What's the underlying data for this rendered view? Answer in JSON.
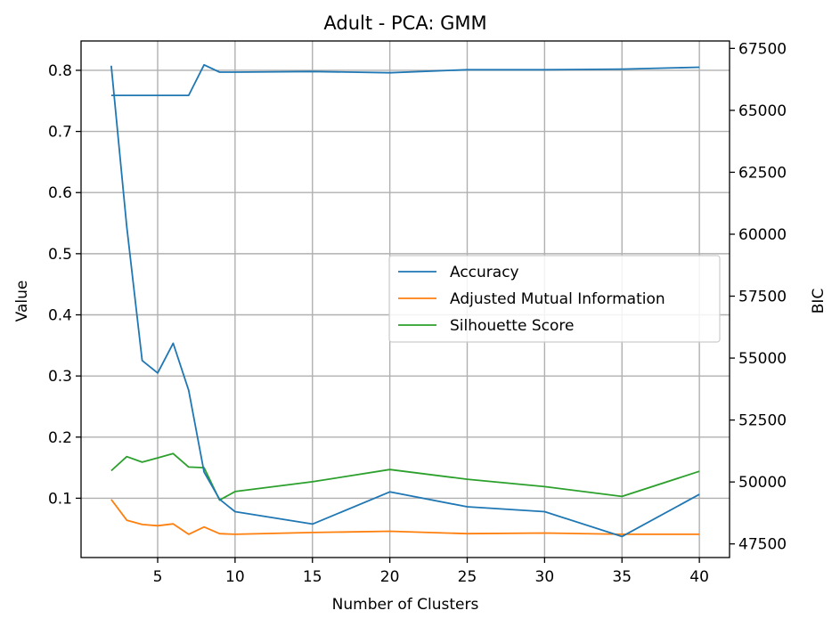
{
  "chart_data": {
    "type": "line",
    "title": "Adult - PCA: GMM",
    "xlabel": "Number of Clusters",
    "ylabel": "Value",
    "y2label": "BIC",
    "xlim": [
      0.05,
      41.95
    ],
    "ylim": [
      0.003,
      0.848
    ],
    "y2lim": [
      46950,
      67800
    ],
    "xticks": [
      5,
      10,
      15,
      20,
      25,
      30,
      35,
      40
    ],
    "yticks": [
      0.1,
      0.2,
      0.3,
      0.4,
      0.5,
      0.6,
      0.7,
      0.8
    ],
    "y2ticks": [
      47500,
      50000,
      52500,
      55000,
      57500,
      60000,
      62500,
      65000,
      67500
    ],
    "grid": true,
    "legend_position": "center-right",
    "series": [
      {
        "name": "Accuracy",
        "color": "#1f77b4",
        "axis": "left",
        "x": [
          2,
          3,
          4,
          5,
          6,
          7,
          8,
          9,
          10,
          15,
          20,
          25,
          30,
          35,
          40
        ],
        "y": [
          0.759,
          0.759,
          0.759,
          0.759,
          0.759,
          0.759,
          0.809,
          0.797,
          0.797,
          0.798,
          0.796,
          0.801,
          0.801,
          0.802,
          0.805
        ]
      },
      {
        "name": "Adjusted Mutual Information",
        "color": "#ff7f0e",
        "axis": "left",
        "x": [
          2,
          3,
          4,
          5,
          6,
          7,
          8,
          9,
          10,
          15,
          20,
          25,
          30,
          35,
          40
        ],
        "y": [
          0.098,
          0.064,
          0.057,
          0.055,
          0.058,
          0.041,
          0.053,
          0.042,
          0.041,
          0.044,
          0.046,
          0.042,
          0.043,
          0.041,
          0.041
        ]
      },
      {
        "name": "Silhouette Score",
        "color": "#2ca02c",
        "axis": "left",
        "x": [
          2,
          3,
          4,
          5,
          6,
          7,
          8,
          9,
          10,
          15,
          20,
          25,
          30,
          35,
          40
        ],
        "y": [
          0.145,
          0.168,
          0.159,
          0.166,
          0.173,
          0.151,
          0.15,
          0.097,
          0.111,
          0.127,
          0.147,
          0.131,
          0.119,
          0.103,
          0.144
        ]
      },
      {
        "name": "BIC",
        "color": "#1f77b4",
        "axis": "right",
        "x": [
          2,
          3,
          4,
          5,
          6,
          7,
          8,
          9,
          10,
          15,
          20,
          25,
          30,
          35,
          40
        ],
        "y": [
          66800,
          60300,
          54900,
          54400,
          55600,
          53700,
          50400,
          49300,
          48800,
          48300,
          49600,
          49000,
          48800,
          47800,
          49500
        ]
      }
    ]
  }
}
